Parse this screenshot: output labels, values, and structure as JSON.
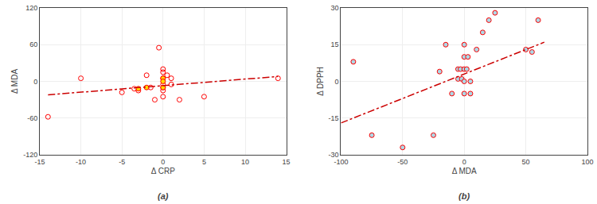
{
  "chart_data": [
    {
      "type": "scatter",
      "title": "(a)",
      "xlabel": "Δ CRP",
      "ylabel": "Δ MDA",
      "xlim": [
        -15,
        15
      ],
      "ylim": [
        -120,
        120
      ],
      "xticks": [
        -15,
        -10,
        -5,
        0,
        5,
        10,
        15
      ],
      "yticks": [
        -120,
        -60,
        0,
        60,
        120
      ],
      "grid": true,
      "series": [
        {
          "type": "scatter",
          "marker": "circle-open",
          "color": "#FF0000",
          "x": [
            -14,
            -10,
            -5,
            -3.5,
            -3,
            -2,
            -1.5,
            -1,
            -0.5,
            0,
            0,
            0,
            0,
            0,
            0,
            0,
            0.5,
            1,
            1,
            2,
            5,
            14
          ],
          "values": [
            -58,
            5,
            -18,
            -12,
            -15,
            10,
            -10,
            -30,
            55,
            20,
            15,
            5,
            -5,
            -10,
            -15,
            -25,
            10,
            5,
            -5,
            -30,
            -25,
            5
          ]
        },
        {
          "type": "scatter",
          "marker": "circle",
          "color": "#FF0000",
          "colors": [
            "#FFD700",
            "#FFD700",
            "#FFD700",
            "#FFD700",
            "#FFD700"
          ],
          "x": [
            -3,
            -2,
            0,
            0,
            0
          ],
          "values": [
            -12,
            -10,
            5,
            0,
            -10
          ]
        },
        {
          "type": "line",
          "line_style": "dashdot",
          "color": "#CC0000",
          "x": [
            -14,
            14
          ],
          "values": [
            -22,
            8
          ]
        }
      ]
    },
    {
      "type": "scatter",
      "title": "(b)",
      "xlabel": "Δ MDA",
      "ylabel": "Δ DPPH",
      "xlim": [
        -100,
        100
      ],
      "ylim": [
        -30,
        30
      ],
      "xticks": [
        -100,
        -50,
        0,
        50,
        100
      ],
      "yticks": [
        -30,
        -15,
        0,
        15,
        30
      ],
      "grid": true,
      "series": [
        {
          "type": "scatter",
          "marker": "circle",
          "color": "#FF0000",
          "colors": [
            "#ADD8E6",
            "#ADD8E6",
            "#ADD8E6",
            "#ADD8E6",
            "#ADD8E6",
            "#ADD8E6",
            "#ADD8E6",
            "#ADD8E6",
            "#ADD8E6",
            "#ADD8E6",
            "#ADD8E6",
            "#ADD8E6",
            "#ADD8E6",
            "#ADD8E6",
            "#ADD8E6",
            "#ADD8E6",
            "#ADD8E6",
            "#ADD8E6",
            "#ADD8E6",
            "#ADD8E6",
            "#ADD8E6",
            "#ADD8E6",
            "#ADD8E6",
            "#ADD8E6",
            "#ADD8E6",
            "#ADD8E6",
            "#ADD8E6"
          ],
          "x": [
            -90,
            -75,
            -50,
            -25,
            -20,
            -15,
            -10,
            -5,
            -5,
            -3,
            -2,
            0,
            0,
            0,
            0,
            0,
            2,
            3,
            5,
            5,
            10,
            15,
            20,
            25,
            50,
            55,
            60
          ],
          "values": [
            8,
            -22,
            -27,
            -22,
            4,
            15,
            -5,
            1,
            5,
            5,
            1,
            0,
            5,
            10,
            15,
            -5,
            5,
            10,
            0,
            -5,
            13,
            20,
            25,
            28,
            13,
            12,
            25
          ]
        },
        {
          "type": "line",
          "line_style": "dashdot",
          "color": "#CC0000",
          "x": [
            -100,
            65
          ],
          "values": [
            -17,
            16
          ]
        }
      ]
    }
  ]
}
